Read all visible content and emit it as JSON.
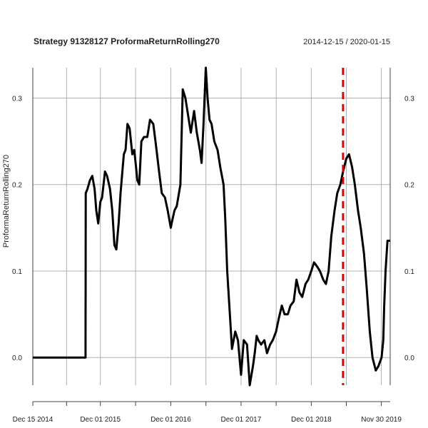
{
  "chart_data": {
    "type": "line",
    "title": "Strategy 91328127 ProformaReturnRolling270",
    "date_range": "2014-12-15 / 2020-01-15",
    "ylabel": "ProformaReturnRolling270",
    "xlabel": "",
    "grid": true,
    "ylim": [
      -0.032,
      0.335
    ],
    "xlim": [
      "2014-12-15",
      "2020-01-15"
    ],
    "x_ticks": [
      "Dec 15 2014",
      "Dec 01 2015",
      "Dec 01 2016",
      "Dec 01 2017",
      "Dec 01 2018",
      "Nov 30 2019"
    ],
    "x_tick_dates": [
      "2014-12-15",
      "2015-12-01",
      "2016-12-01",
      "2017-12-01",
      "2018-12-01",
      "2019-11-30"
    ],
    "y_ticks": [
      "0.0",
      "0.1",
      "0.2",
      "0.3"
    ],
    "y_tick_values": [
      0.0,
      0.1,
      0.2,
      0.3
    ],
    "event_line": {
      "date": "2019-05-15",
      "color": "#e00000",
      "style": "dashed"
    },
    "series": [
      {
        "color": "#000000",
        "x": [
          "2014-12-15",
          "2015-09-15",
          "2015-09-16",
          "2015-09-25",
          "2015-10-08",
          "2015-10-20",
          "2015-11-01",
          "2015-11-10",
          "2015-11-20",
          "2015-12-01",
          "2015-12-10",
          "2015-12-25",
          "2016-01-05",
          "2016-01-20",
          "2016-02-01",
          "2016-02-12",
          "2016-02-22",
          "2016-03-05",
          "2016-03-15",
          "2016-04-01",
          "2016-04-10",
          "2016-04-20",
          "2016-05-01",
          "2016-05-15",
          "2016-05-25",
          "2016-06-01",
          "2016-06-10",
          "2016-06-20",
          "2016-07-01",
          "2016-07-15",
          "2016-08-01",
          "2016-08-15",
          "2016-09-01",
          "2016-09-15",
          "2016-10-01",
          "2016-10-15",
          "2016-11-01",
          "2016-11-15",
          "2016-12-01",
          "2016-12-10",
          "2016-12-20",
          "2017-01-01",
          "2017-01-20",
          "2017-02-01",
          "2017-02-15",
          "2017-03-01",
          "2017-03-15",
          "2017-04-01",
          "2017-04-15",
          "2017-05-01",
          "2017-05-10",
          "2017-05-20",
          "2017-06-01",
          "2017-06-10",
          "2017-06-20",
          "2017-07-01",
          "2017-07-15",
          "2017-08-01",
          "2017-08-15",
          "2017-09-01",
          "2017-09-10",
          "2017-09-20",
          "2017-10-01",
          "2017-10-15",
          "2017-11-01",
          "2017-11-15",
          "2017-12-01",
          "2017-12-15",
          "2018-01-01",
          "2018-01-15",
          "2018-02-01",
          "2018-02-10",
          "2018-02-20",
          "2018-03-01",
          "2018-03-15",
          "2018-04-01",
          "2018-04-15",
          "2018-05-01",
          "2018-05-15",
          "2018-06-01",
          "2018-06-15",
          "2018-07-01",
          "2018-07-15",
          "2018-08-01",
          "2018-08-15",
          "2018-09-01",
          "2018-09-15",
          "2018-10-01",
          "2018-10-15",
          "2018-11-01",
          "2018-11-15",
          "2018-12-01",
          "2018-12-15",
          "2019-01-01",
          "2019-01-15",
          "2019-02-01",
          "2019-02-15",
          "2019-03-01",
          "2019-03-15",
          "2019-04-01",
          "2019-04-15",
          "2019-05-01",
          "2019-05-15",
          "2019-06-01",
          "2019-06-15",
          "2019-07-01",
          "2019-07-15",
          "2019-08-01",
          "2019-08-15",
          "2019-09-01",
          "2019-09-15",
          "2019-10-01",
          "2019-10-15",
          "2019-11-01",
          "2019-11-15",
          "2019-12-01",
          "2019-12-10",
          "2019-12-15",
          "2019-12-22",
          "2020-01-01",
          "2020-01-15"
        ],
        "values": [
          0.0,
          0.0,
          0.19,
          0.195,
          0.205,
          0.21,
          0.195,
          0.17,
          0.155,
          0.18,
          0.185,
          0.215,
          0.21,
          0.195,
          0.17,
          0.13,
          0.125,
          0.155,
          0.19,
          0.235,
          0.24,
          0.27,
          0.265,
          0.235,
          0.24,
          0.225,
          0.205,
          0.2,
          0.25,
          0.255,
          0.255,
          0.275,
          0.27,
          0.245,
          0.215,
          0.19,
          0.185,
          0.17,
          0.15,
          0.16,
          0.17,
          0.175,
          0.2,
          0.31,
          0.3,
          0.28,
          0.26,
          0.285,
          0.26,
          0.24,
          0.225,
          0.27,
          0.335,
          0.3,
          0.275,
          0.27,
          0.25,
          0.24,
          0.22,
          0.2,
          0.16,
          0.1,
          0.06,
          0.01,
          0.03,
          0.02,
          -0.02,
          0.02,
          0.015,
          -0.032,
          -0.01,
          0.005,
          0.025,
          0.02,
          0.015,
          0.02,
          0.005,
          0.015,
          0.02,
          0.03,
          0.045,
          0.06,
          0.05,
          0.05,
          0.06,
          0.065,
          0.09,
          0.075,
          0.07,
          0.085,
          0.09,
          0.1,
          0.11,
          0.105,
          0.1,
          0.09,
          0.085,
          0.1,
          0.14,
          0.17,
          0.19,
          0.2,
          0.215,
          0.23,
          0.235,
          0.22,
          0.2,
          0.17,
          0.15,
          0.12,
          0.08,
          0.03,
          0.0,
          -0.015,
          -0.01,
          0.0,
          0.02,
          0.06,
          0.1,
          0.135,
          0.135
        ]
      }
    ]
  }
}
